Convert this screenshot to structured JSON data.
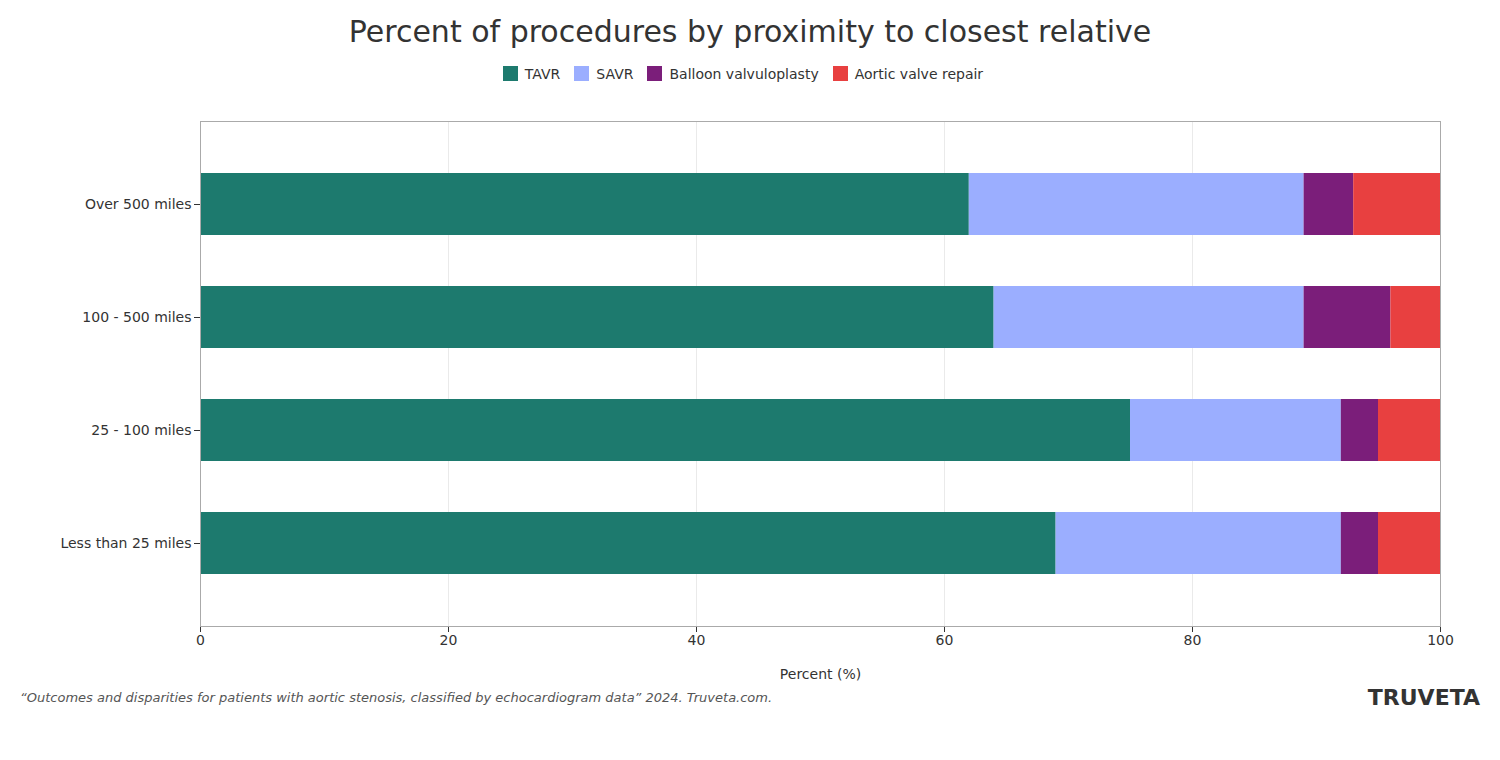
{
  "chart_data": {
    "type": "bar",
    "orientation": "horizontal",
    "stacked": true,
    "title": "Percent of procedures by proximity to closest relative",
    "categories": [
      "Over 500 miles",
      "100 - 500 miles",
      "25 - 100 miles",
      "Less than 25 miles"
    ],
    "series": [
      {
        "name": "TAVR",
        "color": "#1d7a6e",
        "values": [
          62,
          64,
          75,
          69
        ]
      },
      {
        "name": "SAVR",
        "color": "#9baeff",
        "values": [
          27,
          25,
          17,
          23
        ]
      },
      {
        "name": "Balloon valvuloplasty",
        "color": "#7b1e7a",
        "values": [
          4,
          7,
          3,
          3
        ]
      },
      {
        "name": "Aortic valve repair",
        "color": "#e84040",
        "values": [
          7,
          4,
          5,
          5
        ]
      }
    ],
    "xlabel": "Percent (%)",
    "xlim": [
      0,
      100
    ],
    "xticks": [
      0,
      20,
      40,
      60,
      80,
      100
    ],
    "grid": true,
    "legend": "top",
    "annotations": [
      "“Outcomes and disparities for patients with aortic stenosis, classified by echocardiogram data” 2024. Truveta.com.",
      "TRUVETA"
    ]
  }
}
